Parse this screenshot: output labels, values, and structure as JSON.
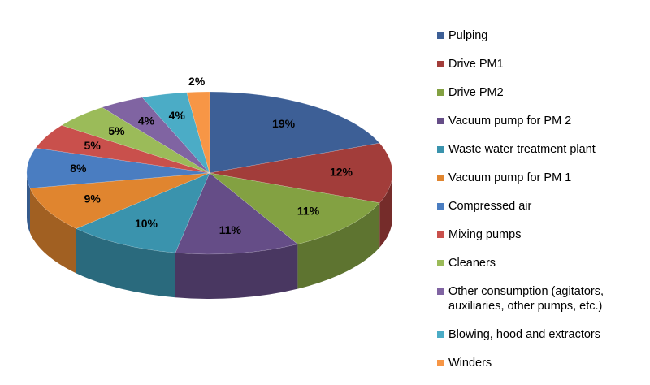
{
  "chart_data": {
    "type": "pie",
    "categories": [
      "Pulping",
      "Drive PM1",
      "Drive PM2",
      "Vacuum pump for PM 2",
      "Waste water treatment plant",
      "Vacuum pump for PM 1",
      "Compressed air",
      "Mixing pumps",
      "Cleaners",
      "Other consumption (agitators, auxiliaries, other pumps, etc.)",
      "Blowing, hood and extractors",
      "Winders"
    ],
    "values": [
      19,
      12,
      11,
      11,
      10,
      9,
      8,
      5,
      5,
      4,
      4,
      2
    ],
    "value_labels": [
      "19%",
      "12%",
      "11%",
      "11%",
      "10%",
      "9%",
      "8%",
      "5%",
      "5%",
      "4%",
      "4%",
      "2%"
    ],
    "colors": [
      "#3d5f96",
      "#a23d3a",
      "#83a142",
      "#654d87",
      "#3a93ad",
      "#e0852f",
      "#4a7dc1",
      "#c9504c",
      "#9bbb59",
      "#8064a2",
      "#4bacc6",
      "#f79646"
    ],
    "legend": "right"
  }
}
